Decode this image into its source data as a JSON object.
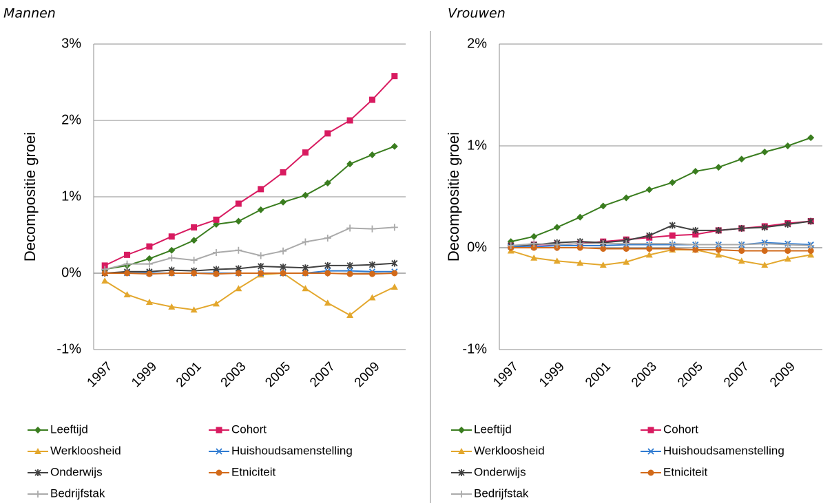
{
  "chart_data": [
    {
      "type": "line",
      "subtitle": "Mannen",
      "y_label": "Decompositie groei",
      "x": [
        1997,
        1998,
        1999,
        2000,
        2001,
        2002,
        2003,
        2004,
        2005,
        2006,
        2007,
        2008,
        2009,
        2010
      ],
      "xlim": [
        1996.5,
        2010.5
      ],
      "xticks": [
        1997,
        1999,
        2001,
        2003,
        2005,
        2007,
        2009
      ],
      "ylim": [
        -1,
        3
      ],
      "yticks": [
        {
          "value": -1,
          "label": "-1%"
        },
        {
          "value": 0,
          "label": "0%"
        },
        {
          "value": 1,
          "label": "1%"
        },
        {
          "value": 2,
          "label": "2%"
        },
        {
          "value": 3,
          "label": "3%"
        }
      ],
      "grid": true,
      "series": [
        {
          "name": "Leeftijd",
          "color": "#3a7d1f",
          "values": [
            0.05,
            0.1,
            0.19,
            0.3,
            0.43,
            0.64,
            0.68,
            0.83,
            0.93,
            1.02,
            1.18,
            1.43,
            1.55,
            1.66
          ]
        },
        {
          "name": "Cohort",
          "color": "#d81b60",
          "values": [
            0.1,
            0.24,
            0.35,
            0.48,
            0.6,
            0.7,
            0.91,
            1.1,
            1.32,
            1.58,
            1.83,
            2.0,
            2.27,
            2.58
          ]
        },
        {
          "name": "Werkloosheid",
          "color": "#e3a72d",
          "values": [
            -0.1,
            -0.28,
            -0.38,
            -0.44,
            -0.48,
            -0.4,
            -0.2,
            -0.02,
            0,
            -0.2,
            -0.39,
            -0.55,
            -0.32,
            -0.18
          ]
        },
        {
          "name": "Huishoudsamenstelling",
          "color": "#2f7bd1",
          "values": [
            0,
            0,
            0,
            0,
            0,
            0,
            0,
            0,
            0,
            0,
            0.03,
            0.03,
            0.02,
            0.02
          ]
        },
        {
          "name": "Onderwijs",
          "color": "#404040",
          "values": [
            0,
            0.02,
            0.02,
            0.04,
            0.03,
            0.05,
            0.06,
            0.09,
            0.08,
            0.07,
            0.1,
            0.1,
            0.11,
            0.13
          ]
        },
        {
          "name": "Etniciteit",
          "color": "#d26a1a",
          "values": [
            0,
            0,
            -0.01,
            0,
            0,
            -0.01,
            0,
            0,
            0,
            0,
            0,
            -0.01,
            -0.01,
            0
          ]
        },
        {
          "name": "Bedrijfstak",
          "color": "#aaaaaa",
          "values": [
            0.05,
            0.12,
            0.12,
            0.2,
            0.17,
            0.27,
            0.3,
            0.23,
            0.29,
            0.41,
            0.46,
            0.59,
            0.58,
            0.6
          ]
        }
      ]
    },
    {
      "type": "line",
      "subtitle": "Vrouwen",
      "y_label": "Decompositie groei",
      "x": [
        1997,
        1998,
        1999,
        2000,
        2001,
        2002,
        2003,
        2004,
        2005,
        2006,
        2007,
        2008,
        2009,
        2010
      ],
      "xlim": [
        1996.5,
        2010.5
      ],
      "xticks": [
        1997,
        1999,
        2001,
        2003,
        2005,
        2007,
        2009
      ],
      "ylim": [
        -1,
        2
      ],
      "yticks": [
        {
          "value": -1,
          "label": "-1%"
        },
        {
          "value": 0,
          "label": "0%"
        },
        {
          "value": 1,
          "label": "1%"
        },
        {
          "value": 2,
          "label": "2%"
        }
      ],
      "grid": true,
      "series": [
        {
          "name": "Leeftijd",
          "color": "#3a7d1f",
          "values": [
            0.06,
            0.11,
            0.2,
            0.3,
            0.41,
            0.49,
            0.57,
            0.64,
            0.75,
            0.79,
            0.87,
            0.94,
            1.0,
            1.08
          ]
        },
        {
          "name": "Cohort",
          "color": "#d81b60",
          "values": [
            0.02,
            0.03,
            0.03,
            0.04,
            0.06,
            0.08,
            0.1,
            0.12,
            0.13,
            0.17,
            0.19,
            0.21,
            0.24,
            0.26
          ]
        },
        {
          "name": "Werkloosheid",
          "color": "#e3a72d",
          "values": [
            -0.03,
            -0.1,
            -0.13,
            -0.15,
            -0.17,
            -0.14,
            -0.07,
            -0.02,
            -0.02,
            -0.07,
            -0.13,
            -0.17,
            -0.11,
            -0.07
          ]
        },
        {
          "name": "Huishoudsamenstelling",
          "color": "#2f7bd1",
          "values": [
            0.01,
            0.01,
            0.02,
            0.02,
            0.02,
            0.03,
            0.03,
            0.03,
            0.03,
            0.03,
            0.03,
            0.05,
            0.04,
            0.03
          ]
        },
        {
          "name": "Onderwijs",
          "color": "#404040",
          "values": [
            0.02,
            0.03,
            0.05,
            0.06,
            0.05,
            0.07,
            0.12,
            0.22,
            0.17,
            0.17,
            0.19,
            0.2,
            0.23,
            0.26
          ]
        },
        {
          "name": "Etniciteit",
          "color": "#d26a1a",
          "values": [
            0,
            0,
            0,
            0,
            -0.01,
            -0.01,
            -0.01,
            -0.01,
            -0.02,
            -0.02,
            -0.03,
            -0.03,
            -0.03,
            -0.03
          ]
        },
        {
          "name": "Bedrijfstak",
          "color": "#aaaaaa",
          "values": [
            0.02,
            0.04,
            0.03,
            0.04,
            0.04,
            0.04,
            0.04,
            0.04,
            0.03,
            0.03,
            0.03,
            0.04,
            0.03,
            0.02
          ]
        }
      ]
    }
  ]
}
